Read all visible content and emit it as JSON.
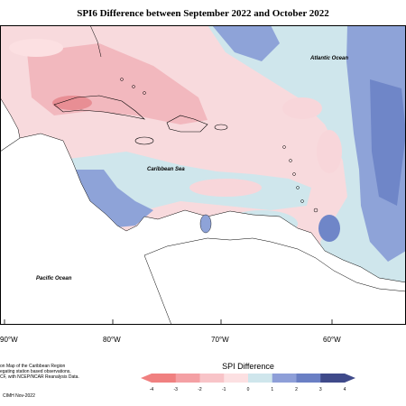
{
  "title": "SPI6 Difference between September 2022 and October 2022",
  "labels": {
    "atlantic": "Atlantic Ocean",
    "caribbean": "Caribbean Sea",
    "pacific": "Pacific Ocean"
  },
  "longitude_ticks": [
    "90°W",
    "80°W",
    "70°W",
    "60°W"
  ],
  "caption_lines": [
    "on Map of the Caribbean Region",
    "egating station based observations,",
    "CF, with NCEP/NCAR Reanalysis Data."
  ],
  "copyright": "CIMH Nov-2022",
  "legend": {
    "title": "SPI Difference",
    "ticks": [
      "-4",
      "-3",
      "-2",
      "-1",
      "0",
      "1",
      "2",
      "3",
      "4"
    ],
    "colors": [
      "#f08080",
      "#f4a0a4",
      "#f8c4c8",
      "#fce0e2",
      "#ffffff",
      "#cfe6ec",
      "#8e9fd8",
      "#6a7fc4",
      "#3f4a8a"
    ]
  },
  "colors": {
    "land": "#ffffff",
    "wet_dark": "#6f86c8",
    "wet_mid": "#8ea3d8",
    "wet_light": "#cfe6ec",
    "dry_light": "#f8d6da",
    "dry_mid": "#f2b8be",
    "dry_strong": "#e88e94"
  }
}
